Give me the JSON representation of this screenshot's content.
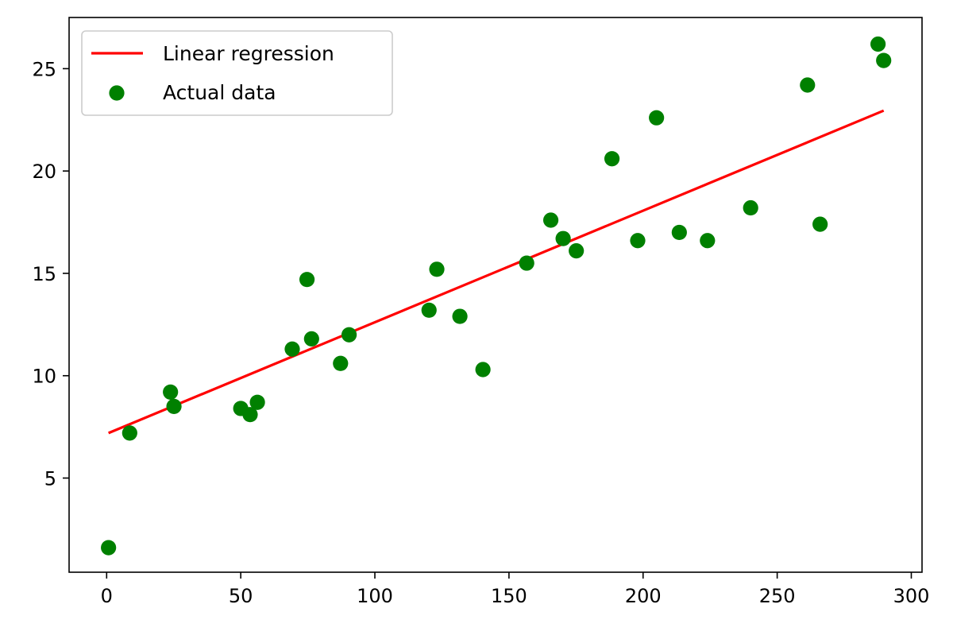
{
  "chart_data": {
    "type": "scatter",
    "title": "",
    "xlabel": "",
    "ylabel": "",
    "xlim": [
      -14,
      304
    ],
    "ylim": [
      0.4,
      27.5
    ],
    "xticks": [
      0,
      50,
      100,
      150,
      200,
      250,
      300
    ],
    "yticks": [
      5,
      10,
      15,
      20,
      25
    ],
    "grid": false,
    "legend_position": "top-left",
    "series": [
      {
        "name": "Linear regression",
        "kind": "line",
        "color": "#ff0000",
        "x": [
          0.7,
          289.7
        ],
        "y": [
          7.2,
          22.95
        ]
      },
      {
        "name": "Actual data",
        "kind": "scatter",
        "color": "#008000",
        "x": [
          0.7,
          8.6,
          23.8,
          25.1,
          50.0,
          53.5,
          56.2,
          69.2,
          74.7,
          76.4,
          87.2,
          90.4,
          120.2,
          123.1,
          131.7,
          140.3,
          156.6,
          165.6,
          170.2,
          175.1,
          188.4,
          198.0,
          205.0,
          213.5,
          224.0,
          240.1,
          261.3,
          266.0,
          287.6,
          289.7
        ],
        "y": [
          1.6,
          7.2,
          9.2,
          8.5,
          8.4,
          8.1,
          8.7,
          11.3,
          14.7,
          11.8,
          10.6,
          12.0,
          13.2,
          15.2,
          12.9,
          10.3,
          15.5,
          17.6,
          16.7,
          16.1,
          20.6,
          16.6,
          22.6,
          17.0,
          16.6,
          18.2,
          24.2,
          17.4,
          26.2,
          25.4
        ]
      }
    ]
  }
}
